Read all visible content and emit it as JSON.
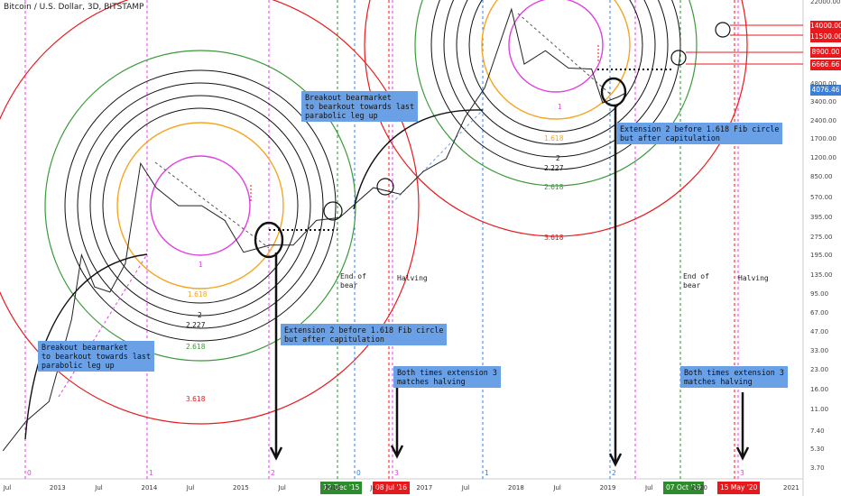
{
  "header": {
    "title": "Bitcoin / U.S. Dollar, 3D, BITSTAMP"
  },
  "annotations": {
    "breakout1": "Breakout bearmarket\nto bearkout towards last\nparabolic leg up",
    "breakout2": "Breakout bearmarket\nto bearkout towards last\nparabolic leg up",
    "extension1": "Extension 2 before 1.618 Fib circle\nbut after capitulation",
    "extension2": "Extension 2 before 1.618 Fib circle\nbut after capitulation",
    "both1": "Both times extension 3\nmatches halving",
    "both2": "Both times extension 3\nmatches halving",
    "endbear1": "End of\nbear",
    "halving1": "Halving",
    "endbear2": "End of\nbear",
    "halving2": "Halving"
  },
  "price_levels": {
    "p14000": "14000.00",
    "p11500": "11500.00",
    "p8900": "8900.00",
    "p6666": "6666.66",
    "p4076": "4076.46"
  },
  "date_labels": {
    "d1": "12 Dec '15",
    "d2": "08 Jul '16",
    "d3": "07 Oct '19",
    "d4": "15 May '20"
  },
  "fib_labels": {
    "a_1": "1",
    "a_1618": "1.618",
    "a_2": "2",
    "a_2227": "2.227",
    "a_2618": "2.618",
    "a_3618": "3.618",
    "b_1": "1",
    "b_1618": "1.618",
    "b_2": "2",
    "b_2227": "2.227",
    "b_2618": "2.618",
    "b_3618": "3.618"
  },
  "extension_numbers": {
    "e0": "0",
    "e1": "1",
    "e2": "2",
    "e0b": "0",
    "e3": "3",
    "e1b": "1",
    "e2b": "2",
    "e3b": "3"
  },
  "colors": {
    "magenta": "#e040e0",
    "orange": "#f5a623",
    "black": "#111111",
    "green": "#3a9a3a",
    "red": "#e8191c",
    "blue_dash": "#3b7fd8",
    "green_line": "#2e8b2e",
    "red_line": "#e8191c",
    "note_bg": "#6aa0e6"
  },
  "chart_data": {
    "type": "line",
    "title": "Bitcoin / U.S. Dollar, 3D, BITSTAMP",
    "xlabel": "",
    "ylabel": "",
    "scale": "log",
    "x_ticks": [
      "Jul",
      "2013",
      "Jul",
      "2014",
      "Jul",
      "2015",
      "Jul",
      "2016",
      "Jul",
      "2017",
      "Jul",
      "2018",
      "Jul",
      "2019",
      "Jul",
      "2020",
      "2021"
    ],
    "y_ticks": [
      "22000.00",
      "14000.00",
      "11500.00",
      "8900.00",
      "6666.66",
      "4800.00",
      "4076.46",
      "3400.00",
      "2400.00",
      "1700.00",
      "1200.00",
      "850.00",
      "570.00",
      "395.00",
      "275.00",
      "195.00",
      "135.00",
      "95.00",
      "67.00",
      "47.00",
      "33.00",
      "23.00",
      "16.00",
      "11.00",
      "7.40",
      "5.30",
      "3.70"
    ],
    "series": [
      {
        "values": [
          [
            "2012-06-01",
            5.2
          ],
          [
            "2012-09-01",
            9
          ],
          [
            "2012-12-01",
            13
          ],
          [
            "2013-03-01",
            60
          ],
          [
            "2013-04-10",
            200
          ],
          [
            "2013-06-01",
            110
          ],
          [
            "2013-08-01",
            100
          ],
          [
            "2013-10-01",
            170
          ],
          [
            "2013-12-01",
            1100
          ],
          [
            "2014-02-01",
            700
          ],
          [
            "2014-05-01",
            500
          ],
          [
            "2014-08-01",
            500
          ],
          [
            "2014-11-01",
            380
          ],
          [
            "2015-01-15",
            210
          ],
          [
            "2015-05-01",
            240
          ],
          [
            "2015-08-01",
            240
          ],
          [
            "2015-11-01",
            380
          ],
          [
            "2016-02-01",
            400
          ],
          [
            "2016-06-15",
            700
          ],
          [
            "2016-10-01",
            620
          ],
          [
            "2017-01-01",
            950
          ],
          [
            "2017-04-01",
            1200
          ],
          [
            "2017-06-15",
            2600
          ],
          [
            "2017-09-01",
            4500
          ],
          [
            "2017-12-17",
            19500
          ],
          [
            "2018-02-06",
            7000
          ],
          [
            "2018-05-01",
            9000
          ],
          [
            "2018-08-01",
            6500
          ],
          [
            "2018-11-01",
            6400
          ],
          [
            "2018-12-15",
            3400
          ],
          [
            "2019-02-15",
            3800
          ],
          [
            "2019-03-15",
            4076.46
          ]
        ]
      }
    ],
    "vertical_markers": [
      {
        "date": "2015-12-12",
        "label": "12 Dec '15"
      },
      {
        "date": "2016-07-08",
        "label": "08 Jul '16"
      },
      {
        "date": "2019-10-07",
        "label": "07 Oct '19"
      },
      {
        "date": "2020-05-15",
        "label": "15 May '20"
      }
    ],
    "horizontal_levels": [
      14000,
      11500,
      8900,
      6666.66
    ],
    "last_price": 4076.46,
    "fib_circle_levels": [
      1,
      1.618,
      2,
      2.227,
      2.618,
      3.618
    ],
    "grid": false,
    "legend": "none"
  }
}
